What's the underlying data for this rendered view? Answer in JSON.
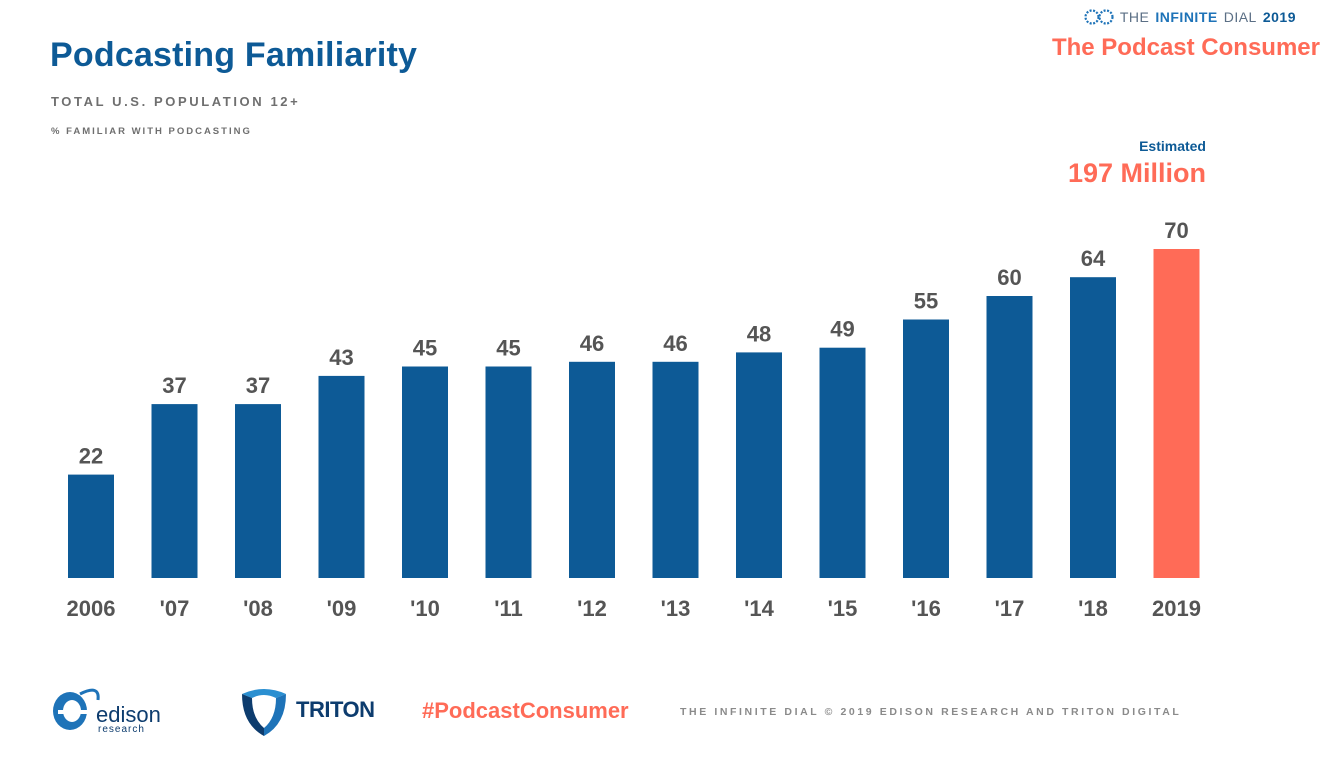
{
  "header": {
    "title": "Podcasting Familiarity",
    "subtitle": "TOTAL U.S. POPULATION 12+",
    "measure": "% FAMILIAR WITH PODCASTING"
  },
  "brand": {
    "prefix": "THE",
    "name": "INFINITE",
    "suffix": "DIAL",
    "year": "2019",
    "report": "The Podcast Consumer"
  },
  "estimate": {
    "label": "Estimated",
    "value": "197 Million"
  },
  "chart_data": {
    "type": "bar",
    "categories": [
      "2006",
      "'07",
      "'08",
      "'09",
      "'10",
      "'11",
      "'12",
      "'13",
      "'14",
      "'15",
      "'16",
      "'17",
      "'18",
      "2019"
    ],
    "values": [
      22,
      37,
      37,
      43,
      45,
      45,
      46,
      46,
      48,
      49,
      55,
      60,
      64,
      70
    ],
    "title": "Podcasting Familiarity",
    "ylim": [
      0,
      70
    ],
    "grid": false,
    "legend": "none",
    "bar_color": "#0d5a96",
    "highlight_color": "#ff6b57",
    "highlight_index": 13,
    "value_label_color": "#555555",
    "tick_label_color": "#555555"
  },
  "footer": {
    "edison": "edison",
    "edison_sub": "research",
    "triton": "TRITON",
    "hashtag": "#PodcastConsumer",
    "copyright": "THE INFINITE DIAL   © 2019 EDISON RESEARCH AND TRITON DIGITAL"
  },
  "icons": {
    "brand": "infinite-dial-logo-icon",
    "edison": "edison-logo-icon",
    "triton": "triton-logo-icon"
  }
}
